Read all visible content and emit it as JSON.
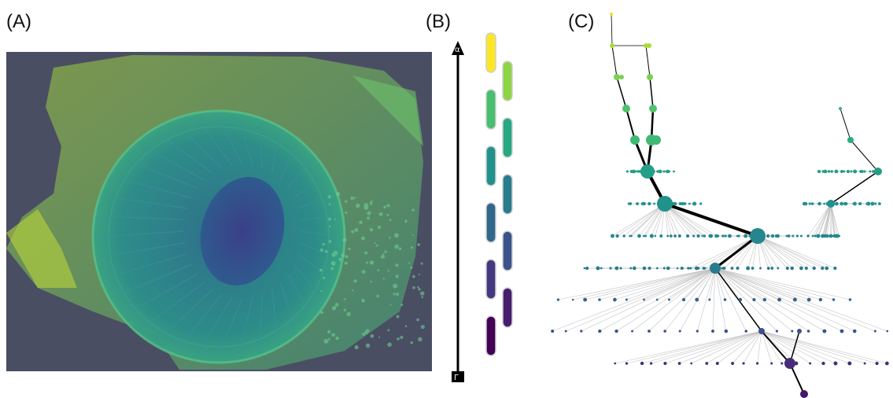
{
  "labels": {
    "a": "(A)",
    "b": "(B)",
    "c": "(C)"
  },
  "axis": {
    "top_symbol": "α",
    "bottom_symbol": "Γ"
  },
  "colormap": "viridis",
  "colors": {
    "background_panel_a": "#4a4e63",
    "edge_strong": "#000000",
    "edge_faint": "#9a9a9a"
  },
  "color_bar_segments": 11
}
